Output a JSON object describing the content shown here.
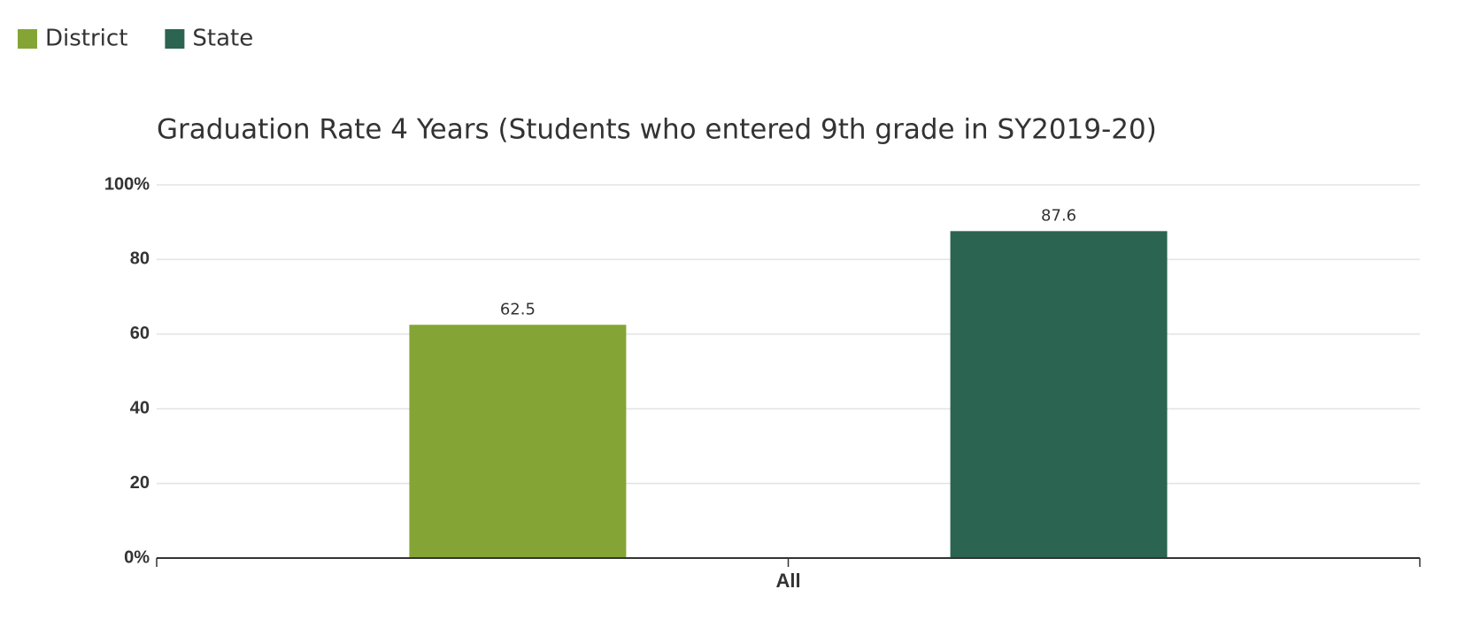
{
  "chart_data": {
    "type": "bar",
    "title": "Graduation Rate 4 Years (Students who entered 9th grade in SY2019-20)",
    "categories": [
      "All"
    ],
    "series": [
      {
        "name": "District",
        "color": "#84a535",
        "values": [
          62.5
        ]
      },
      {
        "name": "State",
        "color": "#2b6450",
        "values": [
          87.6
        ]
      }
    ],
    "ylim": [
      0,
      100
    ],
    "yticks": [
      {
        "value": 0,
        "label": "0%"
      },
      20,
      40,
      60,
      80,
      {
        "value": 100,
        "label": "100%"
      }
    ],
    "grid": true
  }
}
